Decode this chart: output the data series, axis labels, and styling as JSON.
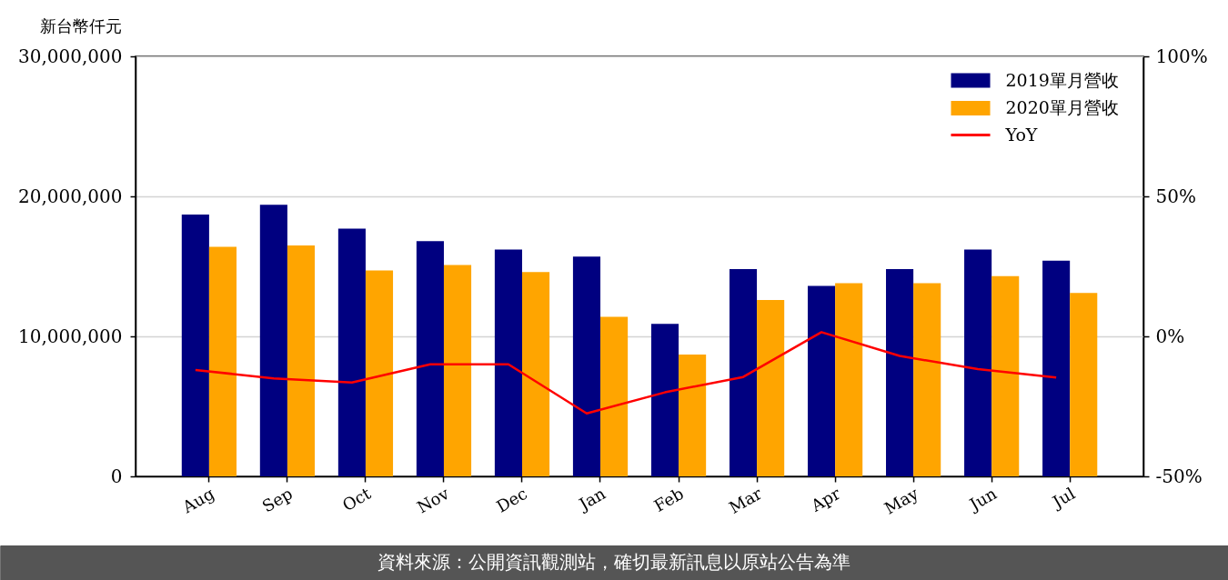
{
  "chart_data": {
    "type": "bar",
    "ylabel": "新台幣仟元",
    "categories": [
      "Aug",
      "Sep",
      "Oct",
      "Nov",
      "Dec",
      "Jan",
      "Feb",
      "Mar",
      "Apr",
      "May",
      "Jun",
      "Jul"
    ],
    "series": [
      {
        "name": "2019單月營收",
        "color": "#000080",
        "values": [
          18700000,
          19400000,
          17700000,
          16800000,
          16200000,
          15700000,
          10900000,
          14800000,
          13600000,
          14800000,
          16200000,
          15400000
        ]
      },
      {
        "name": "2020單月營收",
        "color": "#ffa500",
        "values": [
          16400000,
          16500000,
          14700000,
          15100000,
          14600000,
          11400000,
          8700000,
          12600000,
          13800000,
          13800000,
          14300000,
          13100000
        ]
      },
      {
        "name": "YoY",
        "type": "line",
        "axis": "y2",
        "color": "#ff0000",
        "values": [
          -12,
          -15,
          -16.5,
          -10,
          -10,
          -27.5,
          -20,
          -14.5,
          1.5,
          -7,
          -11.7,
          -14.7
        ]
      }
    ],
    "ylim": [
      0,
      30000000
    ],
    "yticks": [
      {
        "value": 0,
        "label": "0"
      },
      {
        "value": 10000000,
        "label": "10,000,000"
      },
      {
        "value": 20000000,
        "label": "20,000,000"
      },
      {
        "value": 30000000,
        "label": "30,000,000"
      }
    ],
    "y2lim": [
      -50,
      100
    ],
    "y2ticks": [
      {
        "value": -50,
        "label": "-50%"
      },
      {
        "value": 0,
        "label": "0%"
      },
      {
        "value": 50,
        "label": "50%"
      },
      {
        "value": 100,
        "label": "100%"
      }
    ],
    "grid": "y",
    "legend": "top right",
    "annotations": [
      "資料來源：公開資訊觀測站，確切最新訊息以原站公告為準"
    ]
  }
}
